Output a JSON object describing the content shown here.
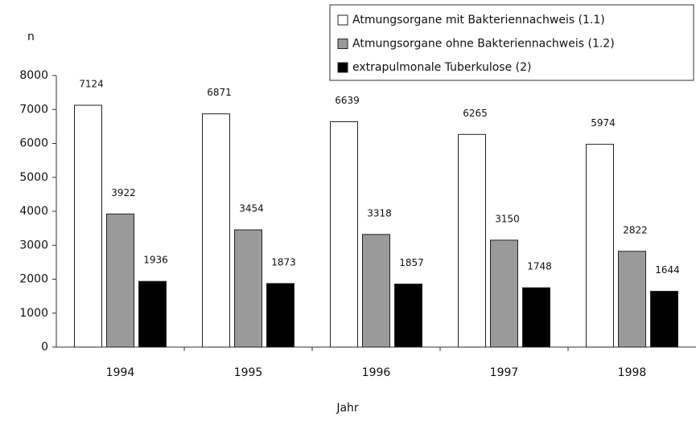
{
  "chart_data": {
    "type": "bar",
    "ylabel": "n",
    "xlabel": "Jahr",
    "categories": [
      "1994",
      "1995",
      "1996",
      "1997",
      "1998"
    ],
    "series": [
      {
        "name": "Atmungsorgane mit Bakteriennachweis (1.1)",
        "color": "#ffffff",
        "values": [
          7124,
          6871,
          6639,
          6265,
          5974
        ]
      },
      {
        "name": "Atmungsorgane ohne Bakteriennachweis (1.2)",
        "color": "#9a9a9a",
        "values": [
          3922,
          3454,
          3318,
          3150,
          2822
        ]
      },
      {
        "name": "extrapulmonale Tuberkulose (2)",
        "color": "#000000",
        "values": [
          1936,
          1873,
          1857,
          1748,
          1644
        ]
      }
    ],
    "ylim": [
      0,
      8000
    ],
    "yticks": [
      0,
      1000,
      2000,
      3000,
      4000,
      5000,
      6000,
      7000,
      8000
    ],
    "legend": "top-right"
  }
}
